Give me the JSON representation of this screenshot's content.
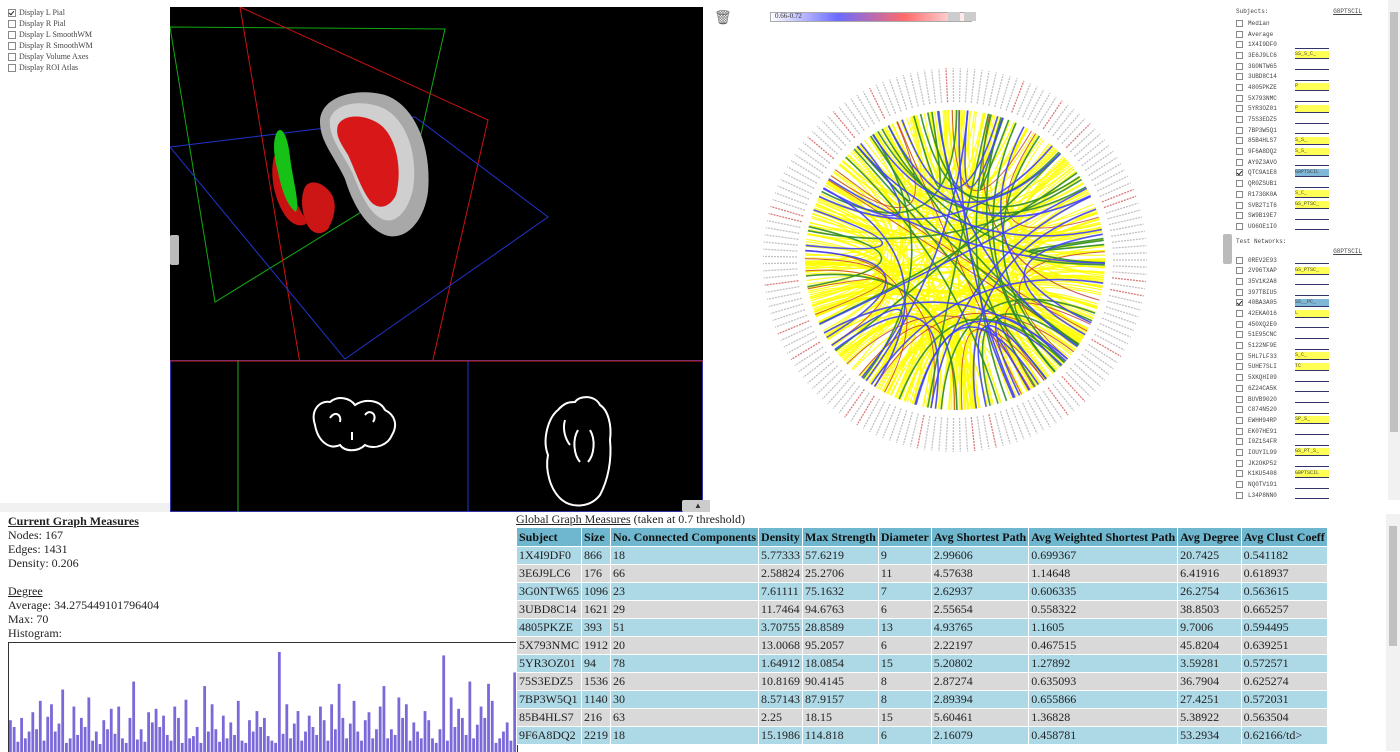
{
  "viewer_options": [
    {
      "label": "Display L Pial",
      "checked": true
    },
    {
      "label": "Display R Pial",
      "checked": false
    },
    {
      "label": "Display L SmoothWM",
      "checked": false
    },
    {
      "label": "Display R SmoothWM",
      "checked": false
    },
    {
      "label": "Display Volume Axes",
      "checked": false
    },
    {
      "label": "Display ROI Atlas",
      "checked": false
    }
  ],
  "connectogram": {
    "threshold_range": "0.66-0.72",
    "colors": {
      "edge_main": "#ffff00",
      "edge_green": "#2e8b2e",
      "edge_blue": "#4040ff",
      "edge_red": "#c03030",
      "label_red": "#c02020",
      "label_gray": "#999999"
    }
  },
  "subjects_panel": {
    "title": "Subjects:",
    "column_header": "G8PTSCIL",
    "items": [
      {
        "label": "Median",
        "checked": false,
        "tag": ""
      },
      {
        "label": "Average",
        "checked": false,
        "tag": ""
      },
      {
        "label": "1X4I9DF0",
        "checked": false,
        "tag": ""
      },
      {
        "label": "3E6J9LC6",
        "checked": false,
        "tag": "SS_S_C_"
      },
      {
        "label": "3G0NTW65",
        "checked": false,
        "tag": ""
      },
      {
        "label": "3UBD8C14",
        "checked": false,
        "tag": ""
      },
      {
        "label": "4805PKZE",
        "checked": false,
        "tag": "P"
      },
      {
        "label": "5X793NMC",
        "checked": false,
        "tag": ""
      },
      {
        "label": "5YR3OZ01",
        "checked": false,
        "tag": "P"
      },
      {
        "label": "75S3EDZ5",
        "checked": false,
        "tag": ""
      },
      {
        "label": "7BP3W5Q1",
        "checked": false,
        "tag": ""
      },
      {
        "label": "85B4HLS7",
        "checked": false,
        "tag": "S_S_"
      },
      {
        "label": "9F6A8DQ2",
        "checked": false,
        "tag": "S_S_"
      },
      {
        "label": "AY9Z3AVO",
        "checked": false,
        "tag": ""
      },
      {
        "label": "QTC9A1E8",
        "checked": true,
        "tag": "G8PTSCIL"
      },
      {
        "label": "QR0ZSUB1",
        "checked": false,
        "tag": ""
      },
      {
        "label": "R173GK0A",
        "checked": false,
        "tag": "S_C_"
      },
      {
        "label": "SVB2T1T6",
        "checked": false,
        "tag": "GS_PTSC_"
      },
      {
        "label": "SW9B19E7",
        "checked": false,
        "tag": ""
      },
      {
        "label": "UO6OE1I0",
        "checked": false,
        "tag": ""
      }
    ],
    "test_title": "Test Networks:",
    "test_header": "G8PTSCIL",
    "test_items": [
      {
        "label": "0REV2E93",
        "checked": false,
        "tag": ""
      },
      {
        "label": "2V96TXAP",
        "checked": false,
        "tag": "GS_PTSC_"
      },
      {
        "label": "35V1K2A8",
        "checked": false,
        "tag": ""
      },
      {
        "label": "397TBIU5",
        "checked": false,
        "tag": ""
      },
      {
        "label": "40BA3A05",
        "checked": true,
        "tag": "SS__PC_"
      },
      {
        "label": "42EKA016",
        "checked": false,
        "tag": "L"
      },
      {
        "label": "450XQ2E0",
        "checked": false,
        "tag": ""
      },
      {
        "label": "51E95CNC",
        "checked": false,
        "tag": ""
      },
      {
        "label": "5122NF9E",
        "checked": false,
        "tag": ""
      },
      {
        "label": "5HL7LF33",
        "checked": false,
        "tag": "S_C_"
      },
      {
        "label": "5UHE7SLI",
        "checked": false,
        "tag": "TC"
      },
      {
        "label": "5XKQHI09",
        "checked": false,
        "tag": ""
      },
      {
        "label": "6Z24CA5K",
        "checked": false,
        "tag": ""
      },
      {
        "label": "BUVB9020",
        "checked": false,
        "tag": ""
      },
      {
        "label": "C874N520",
        "checked": false,
        "tag": ""
      },
      {
        "label": "EWHH94RP",
        "checked": false,
        "tag": "SP_S_"
      },
      {
        "label": "EK07HE91",
        "checked": false,
        "tag": ""
      },
      {
        "label": "I0Z1S4FR",
        "checked": false,
        "tag": ""
      },
      {
        "label": "IOUYIL99",
        "checked": false,
        "tag": "GS_PT_S_"
      },
      {
        "label": "JK2OKP52",
        "checked": false,
        "tag": ""
      },
      {
        "label": "K1KU5408",
        "checked": false,
        "tag": "G8PTSCIL"
      },
      {
        "label": "NQ0TV191",
        "checked": false,
        "tag": ""
      },
      {
        "label": "L34P8NN0",
        "checked": false,
        "tag": ""
      }
    ]
  },
  "current_measures": {
    "title": "Current Graph Measures",
    "nodes": "Nodes: 167",
    "edges": "Edges: 1431",
    "density": "Density: 0.206",
    "degree_title": "Degree",
    "average": "Average: 34.275449101796404",
    "max": "Max: 70",
    "histogram_label": "Histogram:"
  },
  "histogram_values": [
    28,
    22,
    9,
    30,
    12,
    18,
    35,
    20,
    45,
    10,
    31,
    42,
    18,
    25,
    55,
    8,
    12,
    40,
    15,
    30,
    22,
    48,
    10,
    18,
    7,
    28,
    20,
    38,
    16,
    40,
    12,
    8,
    30,
    62,
    11,
    20,
    9,
    35,
    26,
    38,
    22,
    32,
    15,
    10,
    40,
    30,
    8,
    46,
    12,
    14,
    22,
    8,
    58,
    18,
    42,
    20,
    9,
    32,
    12,
    26,
    15,
    45,
    10,
    8,
    28,
    18,
    36,
    22,
    30,
    14,
    10,
    8,
    88,
    16,
    42,
    12,
    25,
    36,
    10,
    18,
    32,
    22,
    15,
    40,
    28,
    10,
    42,
    20,
    60,
    30,
    12,
    25,
    45,
    18,
    10,
    28,
    35,
    12,
    20,
    40,
    58,
    12,
    20,
    15,
    48,
    30,
    42,
    10,
    26,
    18,
    12,
    36,
    28,
    12,
    8,
    20,
    85,
    10,
    48,
    22,
    38,
    30,
    15,
    62,
    12,
    24,
    40,
    30,
    60,
    45,
    8,
    12,
    18,
    26,
    10,
    70
  ],
  "global_measures": {
    "title": "Global Graph Measures",
    "subtitle": "(taken at 0.7 threshold)",
    "headers": [
      "Subject",
      "Size",
      "No. Connected Components",
      "Density",
      "Max Strength",
      "Diameter",
      "Avg Shortest Path",
      "Avg Weighted Shortest Path",
      "Avg Degree",
      "Avg Clust Coeff"
    ],
    "rows": [
      [
        "1X4I9DF0",
        "866",
        "18",
        "5.77333",
        "57.6219",
        "9",
        "2.99606",
        "0.699367",
        "20.7425",
        "0.541182"
      ],
      [
        "3E6J9LC6",
        "176",
        "66",
        "2.58824",
        "25.2706",
        "11",
        "4.57638",
        "1.14648",
        "6.41916",
        "0.618937"
      ],
      [
        "3G0NTW65",
        "1096",
        "23",
        "7.61111",
        "75.1632",
        "7",
        "2.62937",
        "0.606335",
        "26.2754",
        "0.563615"
      ],
      [
        "3UBD8C14",
        "1621",
        "29",
        "11.7464",
        "94.6763",
        "6",
        "2.55654",
        "0.558322",
        "38.8503",
        "0.665257"
      ],
      [
        "4805PKZE",
        "393",
        "51",
        "3.70755",
        "28.8589",
        "13",
        "4.93765",
        "1.1605",
        "9.7006",
        "0.594495"
      ],
      [
        "5X793NMC",
        "1912",
        "20",
        "13.0068",
        "95.2057",
        "6",
        "2.22197",
        "0.467515",
        "45.8204",
        "0.639251"
      ],
      [
        "5YR3OZ01",
        "94",
        "78",
        "1.64912",
        "18.0854",
        "15",
        "5.20802",
        "1.27892",
        "3.59281",
        "0.572571"
      ],
      [
        "75S3EDZ5",
        "1536",
        "26",
        "10.8169",
        "90.4145",
        "8",
        "2.87274",
        "0.635093",
        "36.7904",
        "0.625274"
      ],
      [
        "7BP3W5Q1",
        "1140",
        "30",
        "8.57143",
        "87.9157",
        "8",
        "2.89394",
        "0.655866",
        "27.4251",
        "0.572031"
      ],
      [
        "85B4HLS7",
        "216",
        "63",
        "2.25",
        "18.15",
        "15",
        "5.60461",
        "1.36828",
        "5.38922",
        "0.563504"
      ],
      [
        "9F6A8DQ2",
        "2219",
        "18",
        "15.1986",
        "114.818",
        "6",
        "2.16079",
        "0.458781",
        "53.2934",
        "0.62166/td>"
      ]
    ]
  }
}
